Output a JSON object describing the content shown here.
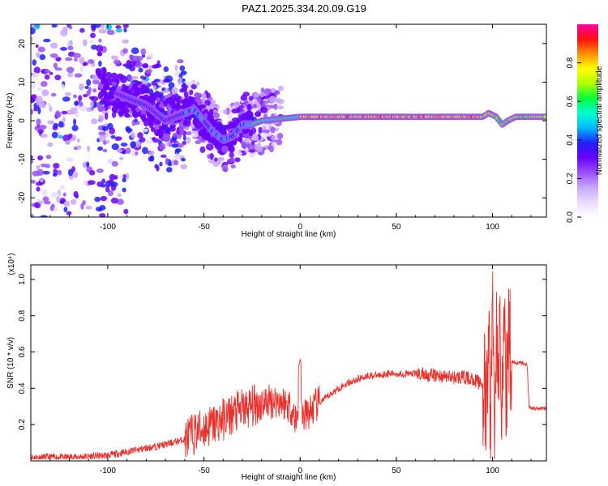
{
  "title": "PAZ1.2025.334.20.09.G19",
  "colors": {
    "snr_line": "#e8302c",
    "frame": "#000000",
    "colormap": [
      "#ffffff",
      "#e9dcff",
      "#c9a6ff",
      "#9a50ff",
      "#6a00ff",
      "#2020ff",
      "#00b8ff",
      "#00ffd0",
      "#00ff40",
      "#b0ff00",
      "#ffff00",
      "#ff9000",
      "#ff1010",
      "#ff00a0"
    ]
  },
  "chart_data": [
    {
      "type": "heatmap",
      "name": "spectrogram",
      "xlabel": "Height of straight line (km)",
      "ylabel": "Frequency (Hz)",
      "xlim": [
        -140,
        128
      ],
      "ylim": [
        -25,
        25
      ],
      "xticks": [
        -100,
        -50,
        0,
        50,
        100
      ],
      "yticks": [
        -20,
        -10,
        0,
        10,
        20
      ],
      "track": {
        "x": [
          -100,
          -90,
          -80,
          -70,
          -60,
          -55,
          -50,
          -45,
          -40,
          -35,
          -30,
          -25,
          -20,
          -10,
          0,
          20,
          60,
          80,
          95,
          98,
          102,
          105,
          108,
          112,
          120,
          128
        ],
        "y": [
          8,
          6,
          4,
          0,
          2,
          3,
          0,
          -3,
          -5,
          -4,
          -1,
          -1,
          0,
          0.5,
          1,
          1,
          1,
          1,
          1,
          2,
          1,
          -1,
          0,
          1,
          1,
          1
        ]
      },
      "colorbar": {
        "label": "Normalized spectral amplitude",
        "ticks": [
          0.0,
          0.2,
          0.4,
          0.6,
          0.8
        ],
        "range": [
          0,
          1
        ]
      }
    },
    {
      "type": "line",
      "name": "snr",
      "xlabel": "Height of straight line (km)",
      "ylabel": "SNR (10 * v/v)",
      "scale_label": "(x10⁴)",
      "xlim": [
        -140,
        128
      ],
      "ylim": [
        0,
        1.08
      ],
      "xticks": [
        -100,
        -50,
        0,
        50,
        100
      ],
      "yticks": [
        0.2,
        0.4,
        0.6,
        0.8,
        1.0
      ],
      "series": [
        {
          "x": [
            -140,
            -120,
            -100,
            -90,
            -80,
            -70,
            -60,
            -55,
            -50,
            -45,
            -40,
            -35,
            -30,
            -25,
            -20,
            -15,
            -10,
            -5,
            -2,
            0,
            2,
            5,
            10,
            15,
            20,
            25,
            30,
            35,
            40,
            45,
            50,
            60,
            70,
            80,
            85,
            90,
            95,
            97,
            98,
            99,
            100,
            101,
            102,
            103,
            104,
            105,
            106,
            107,
            108,
            110,
            112,
            115,
            118,
            119,
            120,
            125,
            128
          ],
          "y": [
            0.02,
            0.02,
            0.03,
            0.05,
            0.07,
            0.09,
            0.12,
            0.15,
            0.18,
            0.2,
            0.23,
            0.26,
            0.28,
            0.3,
            0.32,
            0.33,
            0.33,
            0.3,
            0.22,
            0.32,
            0.24,
            0.27,
            0.32,
            0.36,
            0.4,
            0.43,
            0.45,
            0.47,
            0.47,
            0.48,
            0.48,
            0.48,
            0.47,
            0.46,
            0.46,
            0.45,
            0.42,
            0.25,
            0.75,
            0.15,
            0.95,
            0.2,
            0.8,
            0.3,
            0.85,
            0.25,
            0.9,
            0.3,
            0.7,
            0.55,
            0.54,
            0.54,
            0.53,
            0.3,
            0.29,
            0.29,
            0.29
          ]
        }
      ]
    }
  ]
}
